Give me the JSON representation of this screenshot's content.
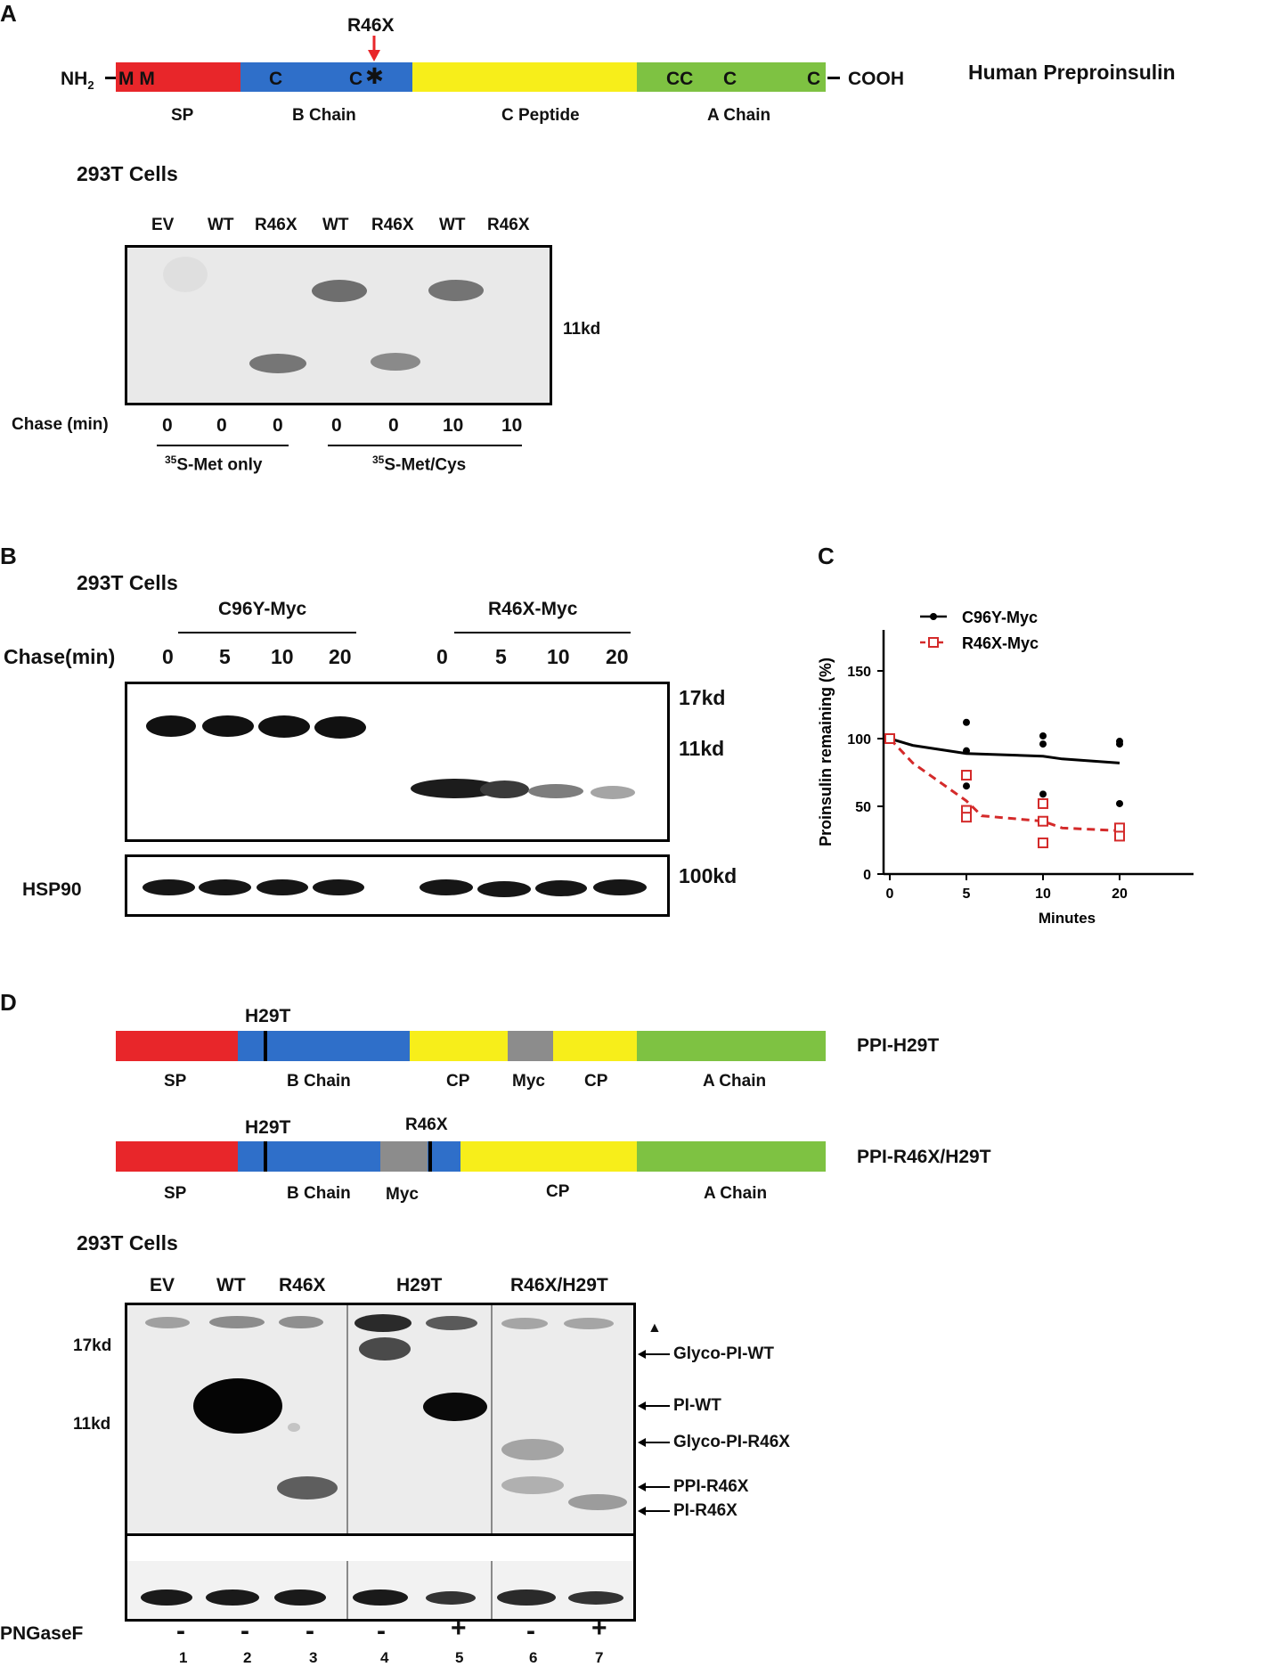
{
  "panel_letters": {
    "a": "A",
    "b": "B",
    "c": "C",
    "d": "D"
  },
  "panel_a": {
    "mutation_label": "R46X",
    "nh2": "NH",
    "nh2_sub": "2",
    "cooh": "COOH",
    "title": "Human Preproinsulin",
    "residues": {
      "sp": "M M",
      "b1": "C",
      "b2": "C",
      "a1": "CC",
      "a2": "C",
      "a3": "C"
    },
    "star": "✱",
    "domains": [
      "SP",
      "B Chain",
      "C Peptide",
      "A Chain"
    ],
    "domain_colors": {
      "sp": "#e8262a",
      "b": "#2f6fc9",
      "c": "#f7ee1a",
      "a": "#7ec242"
    },
    "cells": "293T Cells",
    "lanes": [
      "EV",
      "WT",
      "R46X",
      "WT",
      "R46X",
      "WT",
      "R46X"
    ],
    "marker": "11kd",
    "chase_label": "Chase (min)",
    "chase": [
      "0",
      "0",
      "0",
      "0",
      "0",
      "10",
      "10"
    ],
    "label_met_sup": "35",
    "label_met": "S-Met only",
    "label_metcys_sup": "35",
    "label_metcys": "S-Met/Cys"
  },
  "panel_b": {
    "cells": "293T Cells",
    "group1": "C96Y-Myc",
    "group2": "R46X-Myc",
    "chase_label": "Chase(min)",
    "chase": [
      "0",
      "5",
      "10",
      "20",
      "0",
      "5",
      "10",
      "20"
    ],
    "markers": [
      "17kd",
      "11kd",
      "100kd"
    ],
    "loading": "HSP90"
  },
  "chart_data": {
    "type": "scatter",
    "title": "",
    "xlabel": "Minutes",
    "ylabel": "Proinsulin remaining (%)",
    "xticks": [
      0,
      5,
      10,
      20
    ],
    "yticks": [
      0,
      50,
      100,
      150
    ],
    "xlim": [
      0,
      20
    ],
    "ylim": [
      0,
      150
    ],
    "legend_position": "top-left",
    "series": [
      {
        "name": "C96Y-Myc",
        "color": "#000000",
        "marker": "filled-circle",
        "line": "solid",
        "points": [
          [
            0,
            100
          ],
          [
            5,
            112
          ],
          [
            5,
            91
          ],
          [
            5,
            65
          ],
          [
            10,
            102
          ],
          [
            10,
            96
          ],
          [
            10,
            59
          ],
          [
            20,
            98
          ],
          [
            20,
            96
          ],
          [
            20,
            52
          ]
        ],
        "fit": [
          [
            0,
            100
          ],
          [
            2,
            95
          ],
          [
            5,
            89
          ],
          [
            10,
            87
          ],
          [
            15,
            85
          ],
          [
            20,
            82
          ]
        ]
      },
      {
        "name": "R46X-Myc",
        "color": "#d42a2a",
        "marker": "open-square",
        "line": "dashed",
        "points": [
          [
            0,
            100
          ],
          [
            5,
            73
          ],
          [
            5,
            47
          ],
          [
            5,
            42
          ],
          [
            10,
            52
          ],
          [
            10,
            39
          ],
          [
            10,
            23
          ],
          [
            20,
            34
          ],
          [
            20,
            28
          ]
        ],
        "fit": [
          [
            0,
            100
          ],
          [
            2,
            82
          ],
          [
            5,
            54
          ],
          [
            8,
            43
          ],
          [
            10,
            39
          ],
          [
            15,
            34
          ],
          [
            20,
            32
          ]
        ]
      }
    ]
  },
  "panel_d": {
    "construct1": {
      "mutation": "H29T",
      "name": "PPI-H29T",
      "domains": [
        "SP",
        "B Chain",
        "CP",
        "Myc",
        "CP",
        "A Chain"
      ]
    },
    "construct2": {
      "mutation1": "H29T",
      "mutation2": "R46X",
      "name": "PPI-R46X/H29T",
      "domains": [
        "SP",
        "B Chain",
        "Myc",
        "CP",
        "A Chain"
      ]
    },
    "cells": "293T Cells",
    "lanes": [
      "EV",
      "WT",
      "R46X",
      "H29T",
      "R46X/H29T"
    ],
    "markers": [
      "17kd",
      "11kd"
    ],
    "arrowhead": "▲",
    "band_labels": [
      "Glyco-PI-WT",
      "PI-WT",
      "Glyco-PI-R46X",
      "PPI-R46X",
      "PI-R46X"
    ],
    "pngase_label": "PNGaseF",
    "pngase": [
      "-",
      "-",
      "-",
      "-",
      "+",
      "-",
      "+"
    ],
    "lane_numbers": [
      "1",
      "2",
      "3",
      "4",
      "5",
      "6",
      "7"
    ],
    "myc_color": "#8c8c8c"
  }
}
